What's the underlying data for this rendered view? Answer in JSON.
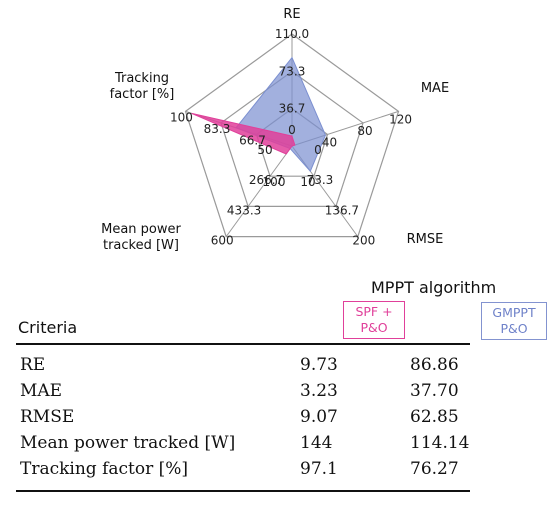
{
  "chart_data": {
    "type": "radar",
    "axes": [
      {
        "label": "RE",
        "min": 0,
        "max": 110.0,
        "ticks": [
          "0",
          "36.7",
          "73.3",
          "110.0"
        ]
      },
      {
        "label": "MAE",
        "min": 0,
        "max": 120,
        "ticks": [
          "0",
          "40",
          "80",
          "120"
        ]
      },
      {
        "label": "RMSE",
        "min": 10,
        "max": 200,
        "ticks": [
          "10",
          "73.3",
          "136.7",
          "200"
        ]
      },
      {
        "label": "Mean power\ntracked [W]",
        "min": 100,
        "max": 600,
        "ticks": [
          "100",
          "266.7",
          "433.3",
          "600"
        ]
      },
      {
        "label": "Tracking\nfactor [%]",
        "min": 50,
        "max": 100,
        "ticks": [
          "50",
          "66.7",
          "83.3",
          "100"
        ]
      }
    ],
    "series": [
      {
        "name": "SPF + P&O",
        "color": "#e0409a",
        "values": [
          9.73,
          3.23,
          9.07,
          144,
          97.1
        ]
      },
      {
        "name": "GMPPT P&O",
        "color": "#7b8fd0",
        "values": [
          86.86,
          37.7,
          62.85,
          114.14,
          76.27
        ]
      }
    ]
  },
  "table": {
    "title": "MPPT algorithm",
    "criteria_header": "Criteria",
    "columns": [
      "SPF +\nP&O",
      "GMPPT\nP&O"
    ],
    "rows": [
      [
        "RE",
        "9.73",
        "86.86"
      ],
      [
        "MAE",
        "3.23",
        "37.70"
      ],
      [
        "RMSE",
        "9.07",
        "62.85"
      ],
      [
        "Mean power tracked [W]",
        "144",
        "114.14"
      ],
      [
        "Tracking factor [%]",
        "97.1",
        "76.27"
      ]
    ]
  }
}
